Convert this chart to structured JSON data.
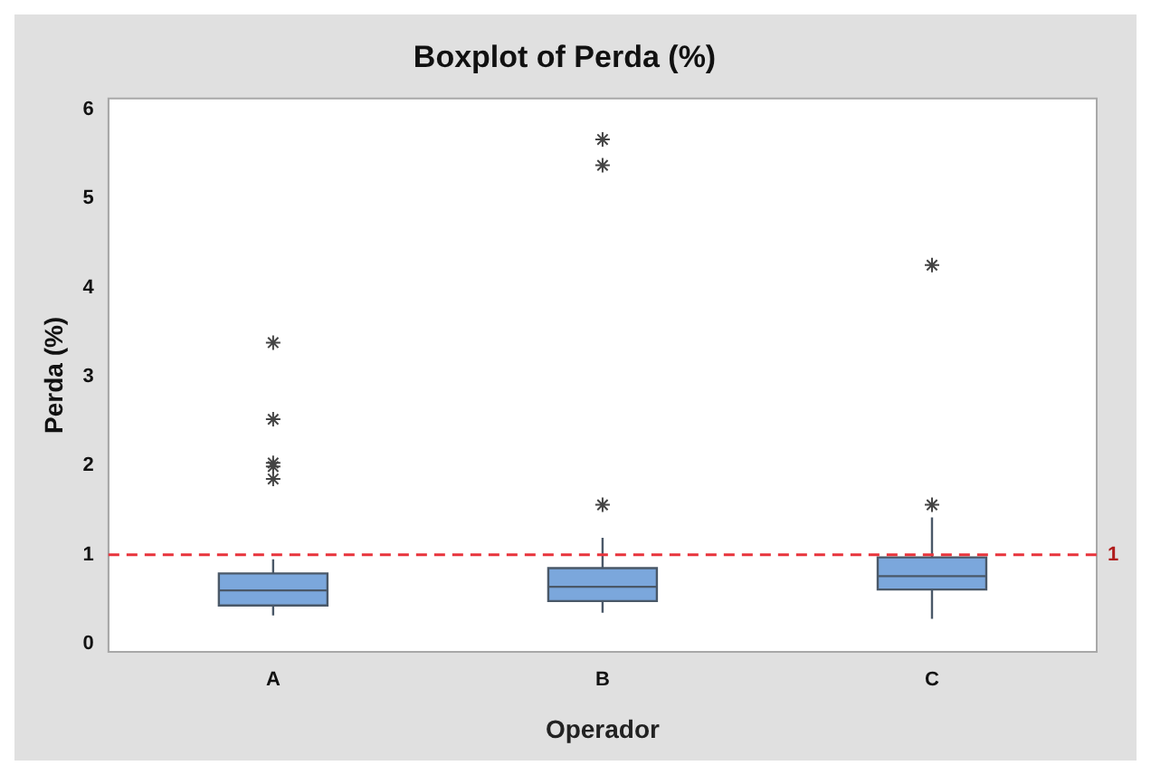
{
  "chart_data": {
    "type": "box",
    "title": "Boxplot of Perda (%)",
    "xlabel": "Operador",
    "ylabel": "Perda (%)",
    "categories": [
      "A",
      "B",
      "C"
    ],
    "boxes": [
      {
        "low": 0.32,
        "q1": 0.43,
        "median": 0.6,
        "q3": 0.79,
        "high": 0.95,
        "outliers": [
          3.38,
          2.52,
          2.03,
          1.99,
          1.85
        ]
      },
      {
        "low": 0.35,
        "q1": 0.48,
        "median": 0.64,
        "q3": 0.85,
        "high": 1.19,
        "outliers": [
          5.66,
          5.37,
          1.56
        ]
      },
      {
        "low": 0.28,
        "q1": 0.61,
        "median": 0.76,
        "q3": 0.97,
        "high": 1.42,
        "outliers": [
          4.25,
          1.56
        ]
      }
    ],
    "color": "#7ba7dc",
    "ylim": [
      -0.09,
      6.12
    ],
    "yticks": [
      0,
      1,
      2,
      3,
      4,
      5,
      6
    ],
    "grid": false,
    "legend": false,
    "ref_lines": [
      {
        "axis": "y",
        "value": 1,
        "label": "1",
        "color": "#e8343c",
        "line_style": "dashed"
      }
    ]
  }
}
